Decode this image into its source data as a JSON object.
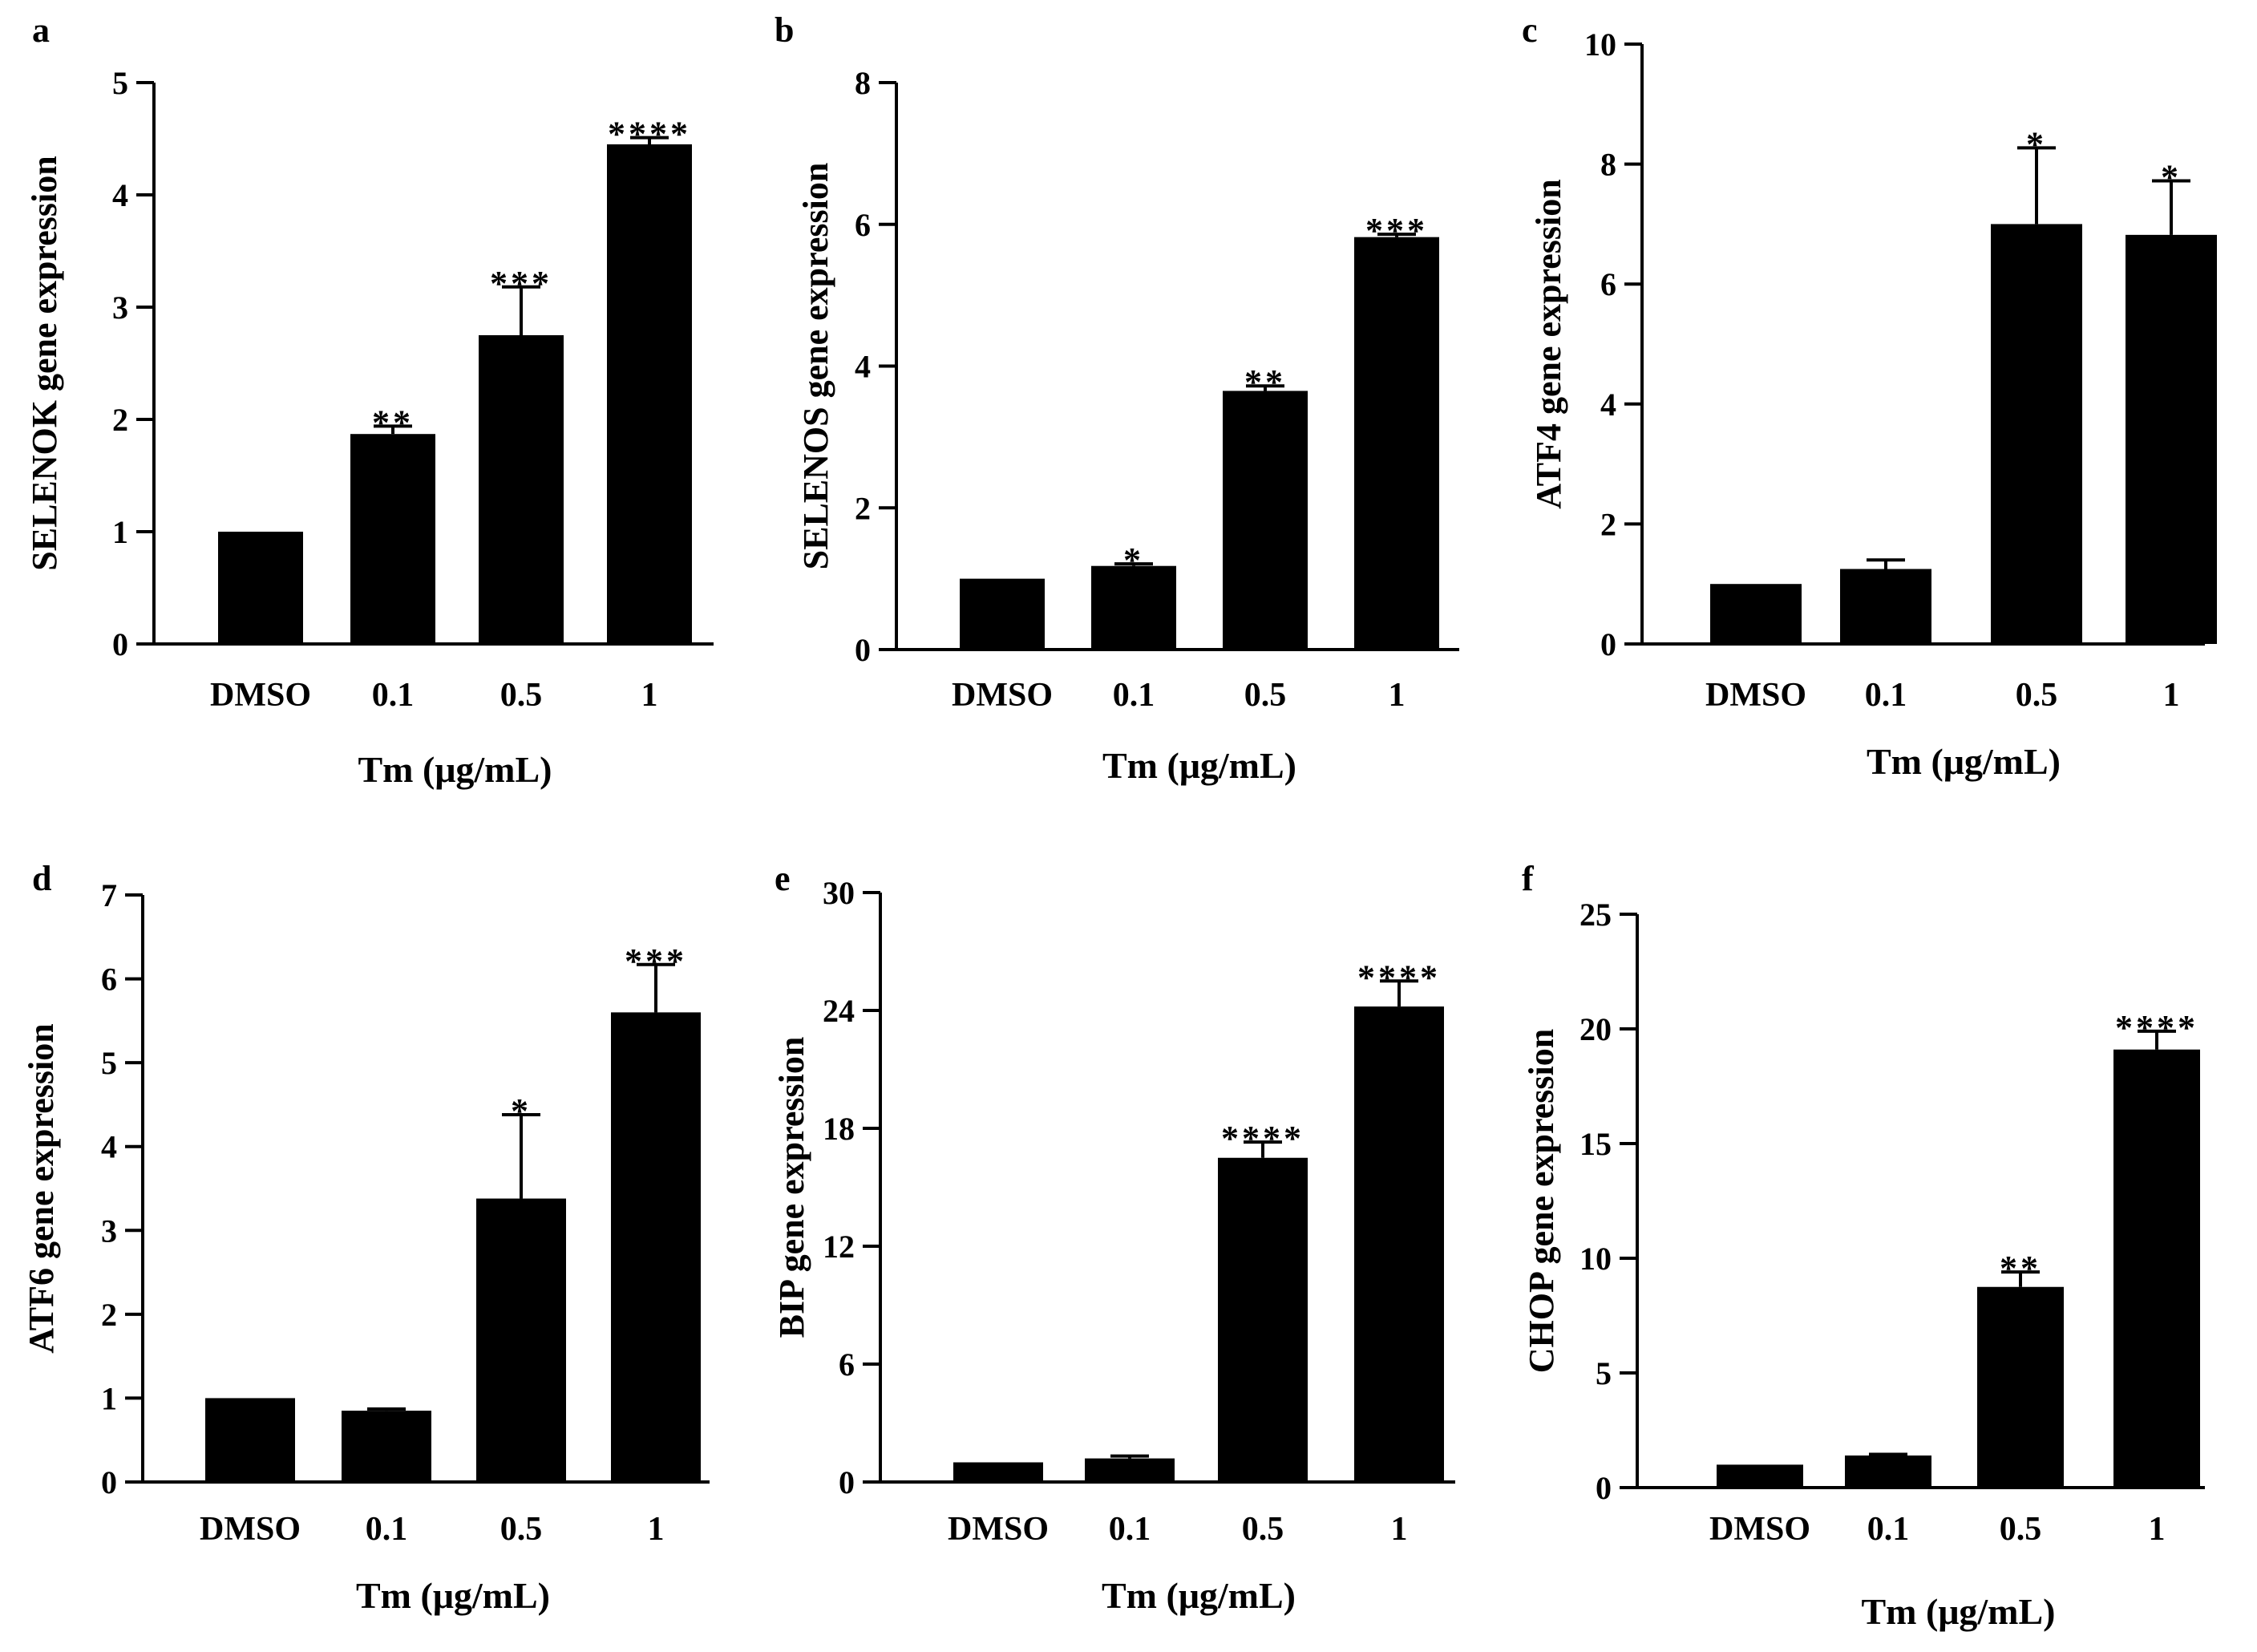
{
  "figure": {
    "x_label": "Tm (μg/mL)",
    "colors": {
      "bar": "#000000",
      "axis": "#000000",
      "background": "#ffffff"
    }
  },
  "chart_data": [
    {
      "panel": "a",
      "type": "bar",
      "categories": [
        "DMSO",
        "0.1",
        "0.5",
        "1"
      ],
      "values": [
        1.0,
        1.87,
        2.75,
        4.45
      ],
      "errors": [
        0.0,
        0.07,
        0.43,
        0.06
      ],
      "significance": [
        "",
        "**",
        "***",
        "****"
      ],
      "ylabel": "SELENOK gene expression",
      "xlabel": "Tm (μg/mL)",
      "ylim": [
        0,
        5
      ],
      "yticks": [
        0,
        1,
        2,
        3,
        4,
        5
      ]
    },
    {
      "panel": "b",
      "type": "bar",
      "categories": [
        "DMSO",
        "0.1",
        "0.5",
        "1"
      ],
      "values": [
        1.0,
        1.18,
        3.65,
        5.82
      ],
      "errors": [
        0.0,
        0.03,
        0.07,
        0.04
      ],
      "significance": [
        "",
        "*",
        "**",
        "***"
      ],
      "ylabel": "SELENOS gene expression",
      "xlabel": "Tm (μg/mL)",
      "ylim": [
        0,
        8
      ],
      "yticks": [
        0,
        2,
        4,
        6,
        8
      ]
    },
    {
      "panel": "c",
      "type": "bar",
      "categories": [
        "DMSO",
        "0.1",
        "0.5",
        "1"
      ],
      "values": [
        1.0,
        1.25,
        7.0,
        6.82
      ],
      "errors": [
        0.0,
        0.15,
        1.27,
        0.9
      ],
      "significance": [
        "",
        "",
        "*",
        "*"
      ],
      "ylabel": "ATF4 gene expression",
      "xlabel": "Tm (μg/mL)",
      "ylim": [
        0,
        10
      ],
      "yticks": [
        0,
        2,
        4,
        6,
        8,
        10
      ]
    },
    {
      "panel": "d",
      "type": "bar",
      "categories": [
        "DMSO",
        "0.1",
        "0.5",
        "1"
      ],
      "values": [
        1.0,
        0.85,
        3.38,
        5.6
      ],
      "errors": [
        0.0,
        0.02,
        1.0,
        0.57
      ],
      "significance": [
        "",
        "",
        "*",
        "***"
      ],
      "ylabel": "ATF6 gene expression",
      "xlabel": "Tm (μg/mL)",
      "ylim": [
        0,
        7
      ],
      "yticks": [
        0,
        1,
        2,
        3,
        4,
        5,
        6,
        7
      ]
    },
    {
      "panel": "e",
      "type": "bar",
      "categories": [
        "DMSO",
        "0.1",
        "0.5",
        "1"
      ],
      "values": [
        1.0,
        1.2,
        16.5,
        24.2
      ],
      "errors": [
        0.0,
        0.12,
        0.8,
        1.3
      ],
      "significance": [
        "",
        "",
        "****",
        "****"
      ],
      "ylabel": "BIP gene expression",
      "xlabel": "Tm (μg/mL)",
      "ylim": [
        0,
        30
      ],
      "yticks": [
        0,
        6,
        12,
        18,
        24,
        30
      ]
    },
    {
      "panel": "f",
      "type": "bar",
      "categories": [
        "DMSO",
        "0.1",
        "0.5",
        "1"
      ],
      "values": [
        1.0,
        1.4,
        8.75,
        19.1
      ],
      "errors": [
        0.0,
        0.05,
        0.65,
        0.8
      ],
      "significance": [
        "",
        "",
        "**",
        "****"
      ],
      "ylabel": "CHOP gene expression",
      "xlabel": "Tm (μg/mL)",
      "ylim": [
        0,
        25
      ],
      "yticks": [
        0,
        5,
        10,
        15,
        20,
        25
      ]
    }
  ]
}
